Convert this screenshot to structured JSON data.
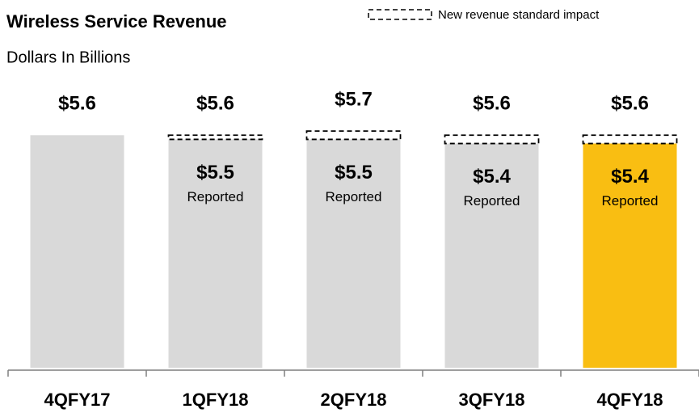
{
  "chart_data": {
    "type": "stacked-bar",
    "title": "Wireless Service Revenue",
    "subtitle": "Dollars In Billions",
    "categories": [
      "4QFY17",
      "1QFY18",
      "2QFY18",
      "3QFY18",
      "4QFY18"
    ],
    "series": [
      {
        "name": "Reported",
        "colors": [
          "#d9d9d9",
          "#d9d9d9",
          "#d9d9d9",
          "#d9d9d9",
          "#f9be12"
        ],
        "values": [
          5.6,
          5.5,
          5.5,
          5.4,
          5.4
        ],
        "value_labels": [
          null,
          "$5.5",
          "$5.5",
          "$5.4",
          "$5.4"
        ]
      },
      {
        "name": "New revenue standard impact",
        "color": "#000000",
        "dashed": true,
        "values": [
          null,
          0.1,
          0.2,
          0.2,
          0.2
        ]
      }
    ],
    "totals": {
      "values": [
        5.6,
        5.6,
        5.7,
        5.6,
        5.6
      ],
      "labels": [
        "$5.6",
        "$5.6",
        "$5.7",
        "$5.6",
        "$5.6"
      ]
    },
    "ylim": [
      0,
      5.8
    ]
  }
}
